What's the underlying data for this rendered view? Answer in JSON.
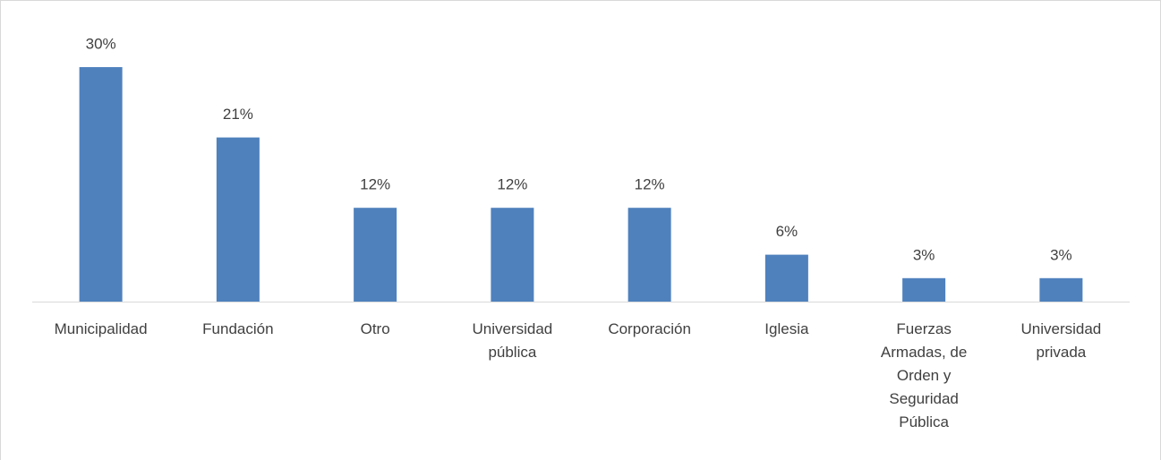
{
  "chart_data": {
    "type": "bar",
    "categories": [
      "Municipalidad",
      "Fundación",
      "Otro",
      "Universidad pública",
      "Corporación",
      "Iglesia",
      "Fuerzas Armadas, de Orden y Seguridad Pública",
      "Universidad privada"
    ],
    "values": [
      30,
      21,
      12,
      12,
      12,
      6,
      3,
      3
    ],
    "value_labels": [
      "30%",
      "21%",
      "12%",
      "12%",
      "12%",
      "6%",
      "3%",
      "3%"
    ],
    "color": "#4f81bd"
  }
}
